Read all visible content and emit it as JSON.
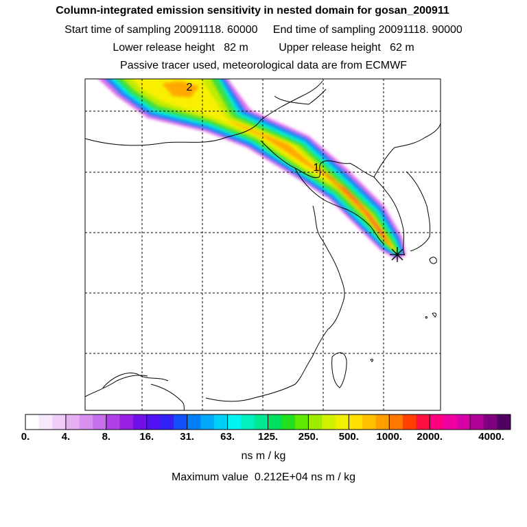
{
  "title": {
    "line1": "Column-integrated emission sensitivity in nested domain for gosan_200911",
    "line2": "Start time of sampling 20091118. 60000     End time of sampling 20091118. 90000",
    "line3": "Lower release height   82 m          Upper release height   62 m",
    "line4": "Passive tracer used, meteorological data are from ECMWF"
  },
  "map": {
    "markers": [
      {
        "label": "2"
      },
      {
        "label": "1"
      }
    ],
    "receptor_icon": "asterisk-star-icon"
  },
  "colorbar": {
    "colors": [
      "#ffffff",
      "#f8e8fc",
      "#f0ccf8",
      "#e8b0f4",
      "#d890f0",
      "#c870ec",
      "#b040e8",
      "#9820e4",
      "#7010e8",
      "#5010f0",
      "#3020f4",
      "#1050f8",
      "#0080f8",
      "#00a8f8",
      "#00d0f8",
      "#00f4f0",
      "#00f0c0",
      "#00e890",
      "#00e060",
      "#20e020",
      "#60e800",
      "#a0ec00",
      "#d0f000",
      "#f0f000",
      "#ffe000",
      "#ffc000",
      "#ffa000",
      "#ff7800",
      "#ff4000",
      "#ff1040",
      "#ff0080",
      "#f000a0",
      "#d800a8",
      "#b00098",
      "#800080",
      "#500060"
    ],
    "ticks": [
      "0.",
      "4.",
      "8.",
      "16.",
      "31.",
      "63.",
      "125.",
      "250.",
      "500.",
      "1000.",
      "2000.",
      "4000."
    ],
    "units": "ns m / kg"
  },
  "max_value": "Maximum value  0.212E+04 ns m / kg"
}
